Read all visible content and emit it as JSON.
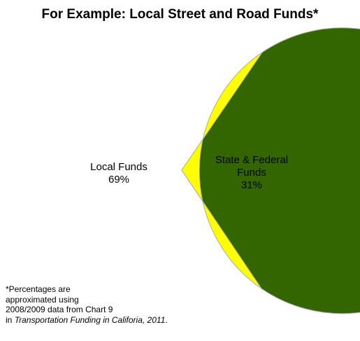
{
  "chart_data": {
    "type": "pie",
    "title": "For Example: Local Street and Road Funds*",
    "slices": [
      {
        "label_lines": [
          "Local Funds",
          "69%"
        ],
        "value": 69,
        "color": "#336600"
      },
      {
        "label_lines": [
          "State & Federal",
          "Funds",
          "31%"
        ],
        "value": 31,
        "color": "#ffff00"
      }
    ],
    "start_angle_deg": -56,
    "direction": "counterclockwise",
    "outline_color": "#aaaaaa"
  },
  "footnote": {
    "line1": "*Percentages are",
    "line2": "approximated using",
    "line3": "2008/2009 data from Chart 9",
    "line4_prefix": "in ",
    "line4_italic": "Transportation Funding in Califoria, 2011",
    "line4_suffix": "."
  }
}
